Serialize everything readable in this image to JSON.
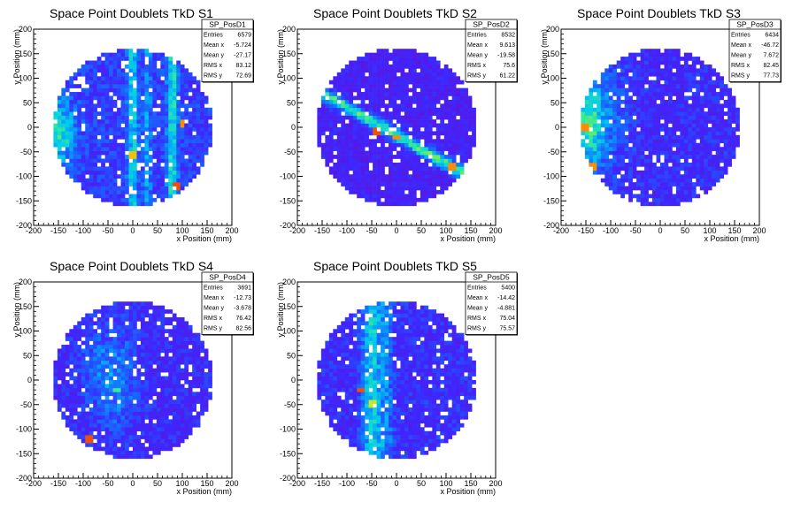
{
  "chart_data": [
    {
      "type": "heatmap",
      "title": "Space Point Doublets TkD S1",
      "xlabel": "x Position (mm)",
      "ylabel": "y Position (mm)",
      "xlim": [
        -200,
        200
      ],
      "ylim": [
        -200,
        200
      ],
      "xticks": [
        -200,
        -150,
        -100,
        -50,
        0,
        50,
        100,
        150,
        200
      ],
      "yticks": [
        -200,
        -150,
        -100,
        -50,
        0,
        50,
        100,
        150,
        200
      ],
      "stats": {
        "name": "SP_PosD1",
        "rows": [
          {
            "label": "Entries",
            "value": "6579"
          },
          {
            "label": "Mean x",
            "value": "-5.724"
          },
          {
            "label": "Mean y",
            "value": "-27.17"
          },
          {
            "label": "RMS x",
            "value": "83.12"
          },
          {
            "label": "RMS y",
            "value": "72.69"
          }
        ]
      },
      "pattern": {
        "base": 0.22,
        "features": [
          {
            "kind": "blob",
            "cx": -150,
            "cy": -10,
            "sx": 25,
            "sy": 45,
            "a": 0.38
          },
          {
            "kind": "vline",
            "x": 0,
            "w": 8,
            "a": 0.3
          },
          {
            "kind": "vline",
            "x": 80,
            "w": 8,
            "a": 0.35
          },
          {
            "kind": "vline",
            "x": 30,
            "w": 6,
            "a": 0.18
          },
          {
            "kind": "hot",
            "x": 85,
            "y": -120,
            "v": 0.95
          },
          {
            "kind": "hot",
            "x": 100,
            "y": 5,
            "v": 0.9
          },
          {
            "kind": "hot",
            "x": 0,
            "y": -55,
            "v": 0.85
          }
        ]
      }
    },
    {
      "type": "heatmap",
      "title": "Space Point Doublets TkD S2",
      "xlabel": "x Position (mm)",
      "ylabel": "y Position (mm)",
      "xlim": [
        -200,
        200
      ],
      "ylim": [
        -200,
        200
      ],
      "xticks": [
        -200,
        -150,
        -100,
        -50,
        0,
        50,
        100,
        150,
        200
      ],
      "yticks": [
        -200,
        -150,
        -100,
        -50,
        0,
        50,
        100,
        150,
        200
      ],
      "stats": {
        "name": "SP_PosD2",
        "rows": [
          {
            "label": "Entries",
            "value": "8532"
          },
          {
            "label": "Mean x",
            "value": "9.613"
          },
          {
            "label": "Mean y",
            "value": "-19.58"
          },
          {
            "label": "RMS x",
            "value": "75.6"
          },
          {
            "label": "RMS y",
            "value": "61.22"
          }
        ]
      },
      "pattern": {
        "base": 0.1,
        "features": [
          {
            "kind": "diag",
            "x1": -150,
            "y1": 70,
            "x2": 130,
            "y2": -90,
            "w": 9,
            "a": 0.55
          },
          {
            "kind": "hot",
            "x": -40,
            "y": -10,
            "v": 0.95
          },
          {
            "kind": "hot",
            "x": 0,
            "y": -20,
            "v": 0.9
          },
          {
            "kind": "hot",
            "x": 110,
            "y": -80,
            "v": 0.9
          }
        ]
      }
    },
    {
      "type": "heatmap",
      "title": "Space Point Doublets TkD S3",
      "xlabel": "x Position (mm)",
      "ylabel": "y Position (mm)",
      "xlim": [
        -200,
        200
      ],
      "ylim": [
        -200,
        200
      ],
      "xticks": [
        -200,
        -150,
        -100,
        -50,
        0,
        50,
        100,
        150,
        200
      ],
      "yticks": [
        -200,
        -150,
        -100,
        -50,
        0,
        50,
        100,
        150,
        200
      ],
      "stats": {
        "name": "SP_PosD3",
        "rows": [
          {
            "label": "Entries",
            "value": "6434"
          },
          {
            "label": "Mean x",
            "value": "-46.72"
          },
          {
            "label": "Mean y",
            "value": "7.672"
          },
          {
            "label": "RMS x",
            "value": "82.45"
          },
          {
            "label": "RMS y",
            "value": "77.73"
          }
        ]
      },
      "pattern": {
        "base": 0.16,
        "features": [
          {
            "kind": "blob",
            "cx": -145,
            "cy": 10,
            "sx": 22,
            "sy": 70,
            "a": 0.42
          },
          {
            "kind": "blob",
            "cx": -100,
            "cy": 20,
            "sx": 30,
            "sy": 80,
            "a": 0.15
          },
          {
            "kind": "hot",
            "x": -150,
            "y": 0,
            "v": 0.9
          },
          {
            "kind": "hot",
            "x": -135,
            "y": -80,
            "v": 0.9
          }
        ]
      }
    },
    {
      "type": "heatmap",
      "title": "Space Point Doublets TkD S4",
      "xlabel": "x Position (mm)",
      "ylabel": "y Position (mm)",
      "xlim": [
        -200,
        200
      ],
      "ylim": [
        -200,
        200
      ],
      "xticks": [
        -200,
        -150,
        -100,
        -50,
        0,
        50,
        100,
        150,
        200
      ],
      "yticks": [
        -200,
        -150,
        -100,
        -50,
        0,
        50,
        100,
        150,
        200
      ],
      "stats": {
        "name": "SP_PosD4",
        "rows": [
          {
            "label": "Entries",
            "value": "3691"
          },
          {
            "label": "Mean x",
            "value": "-12.73"
          },
          {
            "label": "Mean y",
            "value": "-3.678"
          },
          {
            "label": "RMS x",
            "value": "76.42"
          },
          {
            "label": "RMS y",
            "value": "82.56"
          }
        ]
      },
      "pattern": {
        "base": 0.15,
        "features": [
          {
            "kind": "blob",
            "cx": -30,
            "cy": 0,
            "sx": 30,
            "sy": 80,
            "a": 0.22
          },
          {
            "kind": "blob",
            "cx": -80,
            "cy": 30,
            "sx": 25,
            "sy": 60,
            "a": 0.12
          },
          {
            "kind": "hot",
            "x": -85,
            "y": -120,
            "v": 0.95
          },
          {
            "kind": "hot",
            "x": -30,
            "y": -20,
            "v": 0.65
          }
        ]
      }
    },
    {
      "type": "heatmap",
      "title": "Space Point Doublets TkD S5",
      "xlabel": "x Position (mm)",
      "ylabel": "y Position (mm)",
      "xlim": [
        -200,
        200
      ],
      "ylim": [
        -200,
        200
      ],
      "xticks": [
        -200,
        -150,
        -100,
        -50,
        0,
        50,
        100,
        150,
        200
      ],
      "yticks": [
        -200,
        -150,
        -100,
        -50,
        0,
        50,
        100,
        150,
        200
      ],
      "stats": {
        "name": "SP_PosD5",
        "rows": [
          {
            "label": "Entries",
            "value": "5400"
          },
          {
            "label": "Mean x",
            "value": "-14.42"
          },
          {
            "label": "Mean y",
            "value": "-4.881"
          },
          {
            "label": "RMS x",
            "value": "75.04"
          },
          {
            "label": "RMS y",
            "value": "75.57"
          }
        ]
      },
      "pattern": {
        "base": 0.17,
        "features": [
          {
            "kind": "vline",
            "x": -50,
            "w": 14,
            "a": 0.35
          },
          {
            "kind": "vline",
            "x": -20,
            "w": 10,
            "a": 0.18
          },
          {
            "kind": "hot",
            "x": -75,
            "y": -20,
            "v": 0.95
          },
          {
            "kind": "hot",
            "x": -45,
            "y": -50,
            "v": 0.8
          }
        ]
      }
    }
  ]
}
